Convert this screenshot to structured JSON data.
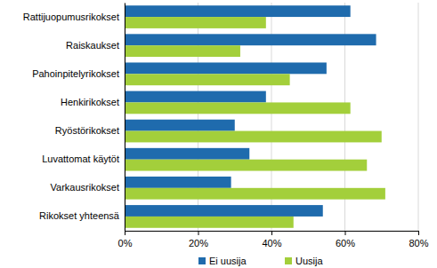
{
  "chart_data": {
    "type": "bar",
    "orientation": "horizontal",
    "grid": true,
    "legend": "bottom",
    "categories": [
      "Rattijuopumusrikokset",
      "Raiskaukset",
      "Pahoinpitelyrikokset",
      "Henkirikokset",
      "Ryöstörikokset",
      "Luvattomat käytöt",
      "Varkausrikokset",
      "Rikokset yhteensä"
    ],
    "series": [
      {
        "name": "Ei uusija",
        "color": "#1f6bad",
        "values": [
          61.5,
          68.5,
          55,
          38.5,
          30,
          34,
          29,
          54
        ]
      },
      {
        "name": "Uusija",
        "color": "#a3cf3b",
        "values": [
          38.5,
          31.5,
          45,
          61.5,
          70,
          66,
          71,
          46
        ]
      }
    ],
    "xlim": [
      0,
      80
    ],
    "xticks": [
      {
        "value": 0,
        "label": "0%"
      },
      {
        "value": 20,
        "label": "20%"
      },
      {
        "value": 40,
        "label": "40%"
      },
      {
        "value": 60,
        "label": "60%"
      },
      {
        "value": 80,
        "label": "80%"
      }
    ]
  }
}
